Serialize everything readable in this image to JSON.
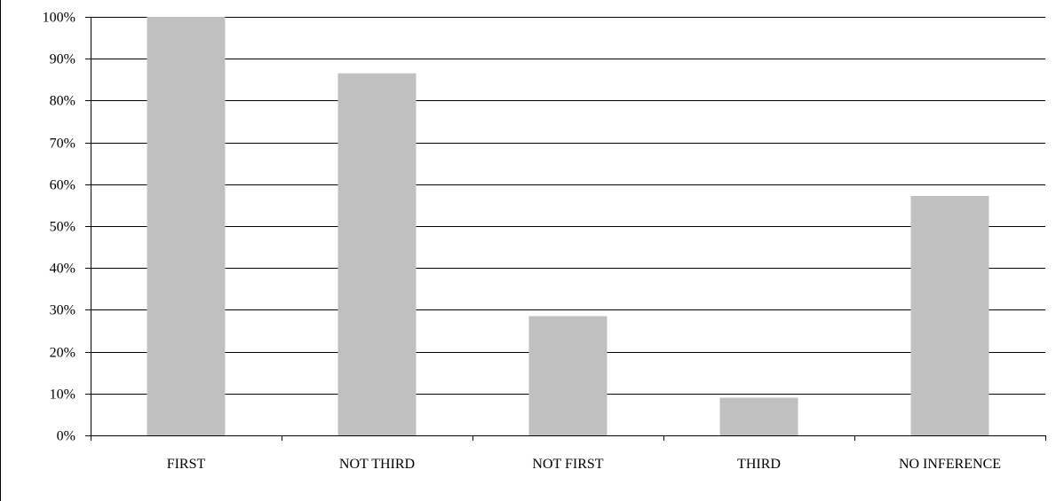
{
  "chart_data": {
    "type": "bar",
    "categories": [
      "FIRST",
      "NOT THIRD",
      "NOT FIRST",
      "THIRD",
      "NO INFERENCE"
    ],
    "values": [
      100,
      86.5,
      28.5,
      9,
      57.2
    ],
    "value_format": "percent",
    "ylim": [
      0,
      100
    ],
    "yticks": [
      "0%",
      "10%",
      "20%",
      "30%",
      "40%",
      "50%",
      "60%",
      "70%",
      "80%",
      "90%",
      "100%"
    ],
    "grid": true,
    "legend": "none",
    "colors": {
      "bar": "#c0c0c0",
      "grid": "#000000",
      "axis": "#000000"
    }
  }
}
